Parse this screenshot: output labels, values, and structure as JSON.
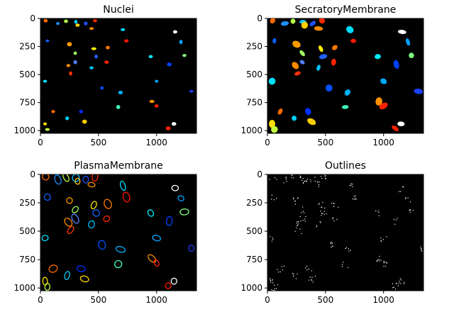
{
  "chart_data": [
    {
      "type": "heatmap",
      "title": "Nuclei",
      "xlim": [
        0,
        1344
      ],
      "ylim": [
        1024,
        0
      ],
      "xticks": [
        0,
        500,
        1000
      ],
      "yticks": [
        0,
        250,
        500,
        750,
        1000
      ],
      "colormap": "jet",
      "background": "#000000",
      "objects": [
        {
          "x": 45,
          "y": 20,
          "c": "#ff6a00"
        },
        {
          "x": 150,
          "y": 45,
          "c": "#1e90ff"
        },
        {
          "x": 220,
          "y": 25,
          "c": "#b6ff48"
        },
        {
          "x": 305,
          "y": 30,
          "c": "#00c8ff"
        },
        {
          "x": 320,
          "y": 60,
          "c": "#ffd000"
        },
        {
          "x": 390,
          "y": 45,
          "c": "#2050ff"
        },
        {
          "x": 440,
          "y": 90,
          "c": "#ff8a00"
        },
        {
          "x": 470,
          "y": 20,
          "c": "#ff2a00"
        },
        {
          "x": 710,
          "y": 100,
          "c": "#00dcff"
        },
        {
          "x": 1160,
          "y": 120,
          "c": "#ffffff"
        },
        {
          "x": 60,
          "y": 200,
          "c": "#1060ff"
        },
        {
          "x": 250,
          "y": 230,
          "c": "#ff9a00"
        },
        {
          "x": 300,
          "y": 310,
          "c": "#a0ff60"
        },
        {
          "x": 460,
          "y": 270,
          "c": "#ffee00"
        },
        {
          "x": 580,
          "y": 260,
          "c": "#ff7a00"
        },
        {
          "x": 740,
          "y": 200,
          "c": "#ff1a00"
        },
        {
          "x": 1210,
          "y": 210,
          "c": "#00a0ff"
        },
        {
          "x": 1240,
          "y": 330,
          "c": "#80ff80"
        },
        {
          "x": 950,
          "y": 340,
          "c": "#00f0ff"
        },
        {
          "x": 480,
          "y": 340,
          "c": "#2060ff"
        },
        {
          "x": 240,
          "y": 420,
          "c": "#ff8a00"
        },
        {
          "x": 260,
          "y": 490,
          "c": "#ff3300"
        },
        {
          "x": 300,
          "y": 390,
          "c": "#5080ff"
        },
        {
          "x": 440,
          "y": 440,
          "c": "#00c0ff"
        },
        {
          "x": 570,
          "y": 390,
          "c": "#ff2200"
        },
        {
          "x": 1110,
          "y": 410,
          "c": "#0040ff"
        },
        {
          "x": 1000,
          "y": 560,
          "c": "#00a8ff"
        },
        {
          "x": 40,
          "y": 560,
          "c": "#00e0ff"
        },
        {
          "x": 530,
          "y": 620,
          "c": "#0050ff"
        },
        {
          "x": 690,
          "y": 660,
          "c": "#00b0ff"
        },
        {
          "x": 960,
          "y": 740,
          "c": "#ff9000"
        },
        {
          "x": 1000,
          "y": 780,
          "c": "#ff2000"
        },
        {
          "x": 670,
          "y": 790,
          "c": "#40ffc0"
        },
        {
          "x": 350,
          "y": 830,
          "c": "#0030ff"
        },
        {
          "x": 40,
          "y": 940,
          "c": "#ffe000"
        },
        {
          "x": 60,
          "y": 990,
          "c": "#c0ff40"
        },
        {
          "x": 230,
          "y": 890,
          "c": "#00d0ff"
        },
        {
          "x": 380,
          "y": 920,
          "c": "#ffd000"
        },
        {
          "x": 1100,
          "y": 980,
          "c": "#ff2000"
        },
        {
          "x": 1150,
          "y": 940,
          "c": "#ffffff"
        },
        {
          "x": 1300,
          "y": 650,
          "c": "#1a40ff"
        },
        {
          "x": 110,
          "y": 830,
          "c": "#ff6a00"
        }
      ]
    },
    {
      "type": "heatmap",
      "title": "SecratoryMembrane",
      "xlim": [
        0,
        1344
      ],
      "ylim": [
        1024,
        0
      ],
      "xticks": [
        0,
        500,
        1000
      ],
      "yticks": [
        0,
        250,
        500,
        750,
        1000
      ],
      "colormap": "jet",
      "background": "#000000"
    },
    {
      "type": "heatmap",
      "title": "PlasmaMembrane",
      "xlim": [
        0,
        1344
      ],
      "ylim": [
        1024,
        0
      ],
      "xticks": [
        0,
        500,
        1000
      ],
      "yticks": [
        0,
        250,
        500,
        750,
        1000
      ],
      "colormap": "jet",
      "background": "#000000"
    },
    {
      "type": "heatmap",
      "title": "Outlines",
      "xlim": [
        0,
        1344
      ],
      "ylim": [
        1024,
        0
      ],
      "xticks": [
        0,
        500,
        1000
      ],
      "yticks": [
        0,
        250,
        500,
        750,
        1000
      ],
      "colormap": "gray",
      "background": "#000000"
    }
  ]
}
